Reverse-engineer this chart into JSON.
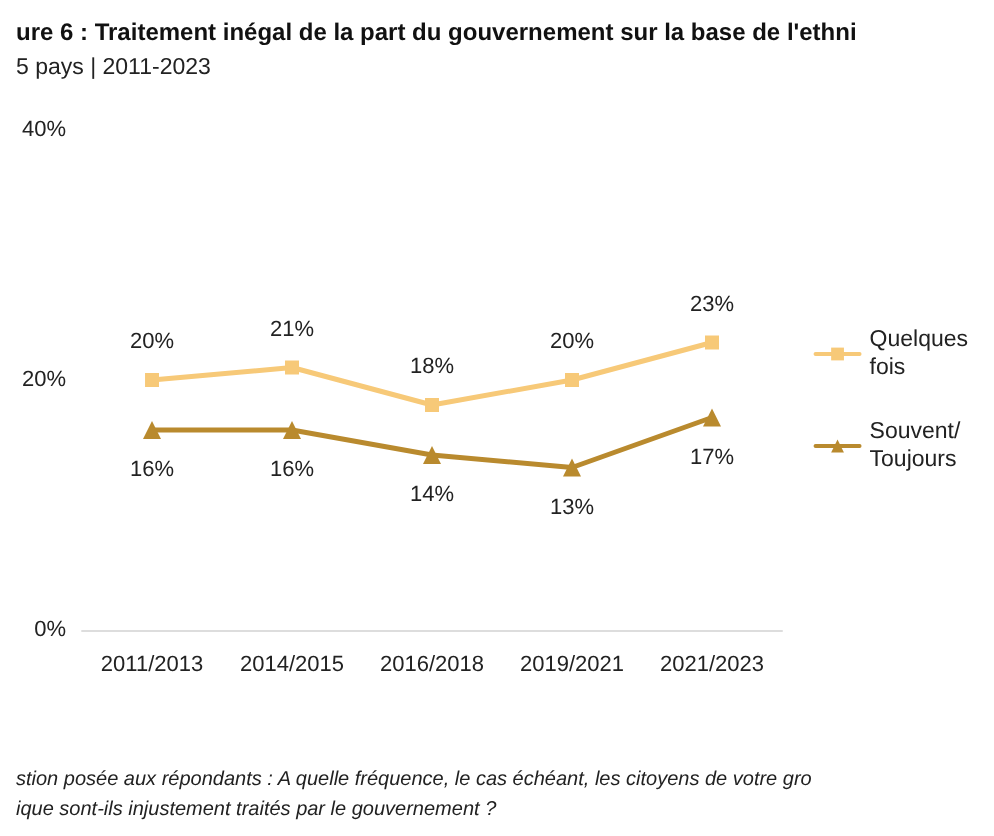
{
  "chart_data": {
    "type": "line",
    "title": "ure 6 : Traitement inégal de la part du gouvernement sur la base de l'ethni",
    "subtitle": "5 pays | 2011-2023",
    "categories": [
      "2011/2013",
      "2014/2015",
      "2016/2018",
      "2019/2021",
      "2021/2023"
    ],
    "series": [
      {
        "name": "Quelques fois",
        "color": "#f7c978",
        "marker": "square",
        "values": [
          20,
          21,
          18,
          20,
          23
        ],
        "value_labels": [
          "20%",
          "21%",
          "18%",
          "20%",
          "23%"
        ]
      },
      {
        "name": "Souvent/ Toujours",
        "color": "#b98a2e",
        "marker": "triangle",
        "values": [
          16,
          16,
          14,
          13,
          17
        ],
        "value_labels": [
          "16%",
          "16%",
          "14%",
          "13%",
          "17%"
        ]
      }
    ],
    "ylim": [
      0,
      40
    ],
    "yticks": [
      {
        "value": 0,
        "label": "0%"
      },
      {
        "value": 20,
        "label": "20%"
      },
      {
        "value": 40,
        "label": "40%"
      }
    ],
    "grid": false,
    "legend": "right",
    "line_style": "solid",
    "annotations": [
      "stion posée aux répondants : A quelle fréquence, le cas échéant, les citoyens de votre gro",
      "ique sont-ils injustement traités par le gouvernement ?"
    ]
  }
}
